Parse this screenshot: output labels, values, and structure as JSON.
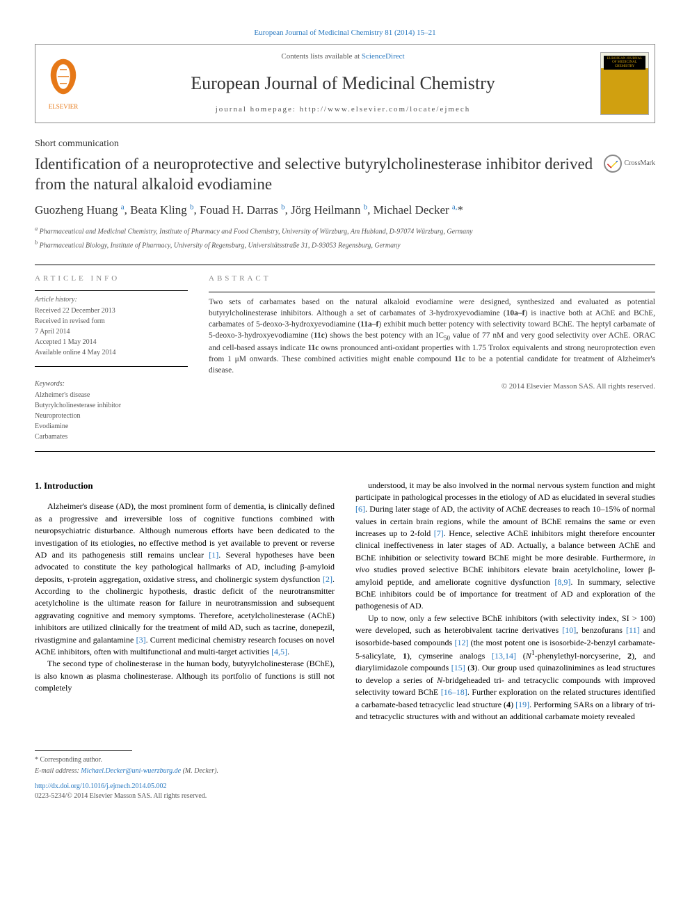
{
  "top_ref": "European Journal of Medicinal Chemistry 81 (2014) 15–21",
  "header": {
    "contents_prefix": "Contents lists available at ",
    "contents_link": "ScienceDirect",
    "journal_name": "European Journal of Medicinal Chemistry",
    "homepage_prefix": "journal homepage: ",
    "homepage_url": "http://www.elsevier.com/locate/ejmech",
    "elsevier_label": "ELSEVIER",
    "cover_label": "EUROPEAN JOURNAL OF MEDICINAL CHEMISTRY"
  },
  "article_type": "Short communication",
  "title": "Identification of a neuroprotective and selective butyrylcholinesterase inhibitor derived from the natural alkaloid evodiamine",
  "crossmark_label": "CrossMark",
  "authors_html": "Guozheng Huang <sup>a</sup>, Beata Kling <sup>b</sup>, Fouad H. Darras <sup>b</sup>, Jörg Heilmann <sup>b</sup>, Michael Decker <sup>a,</sup>*",
  "affiliations": [
    "a Pharmaceutical and Medicinal Chemistry, Institute of Pharmacy and Food Chemistry, University of Würzburg, Am Hubland, D-97074 Würzburg, Germany",
    "b Pharmaceutical Biology, Institute of Pharmacy, University of Regensburg, Universitätsstraße 31, D-93053 Regensburg, Germany"
  ],
  "info": {
    "heading": "ARTICLE INFO",
    "history_label": "Article history:",
    "history": [
      "Received 22 December 2013",
      "Received in revised form",
      "7 April 2014",
      "Accepted 1 May 2014",
      "Available online 4 May 2014"
    ],
    "keywords_label": "Keywords:",
    "keywords": [
      "Alzheimer's disease",
      "Butyrylcholinesterase inhibitor",
      "Neuroprotection",
      "Evodiamine",
      "Carbamates"
    ]
  },
  "abstract": {
    "heading": "ABSTRACT",
    "text": "Two sets of carbamates based on the natural alkaloid evodiamine were designed, synthesized and evaluated as potential butyrylcholinesterase inhibitors. Although a set of carbamates of 3-hydroxyevodiamine (10a–f) is inactive both at AChE and BChE, carbamates of 5-deoxo-3-hydroxyevodiamine (11a–f) exhibit much better potency with selectivity toward BChE. The heptyl carbamate of 5-deoxo-3-hydroxyevodiamine (11c) shows the best potency with an IC50 value of 77 nM and very good selectivity over AChE. ORAC and cell-based assays indicate 11c owns pronounced anti-oxidant properties with 1.75 Trolox equivalents and strong neuroprotection even from 1 μM onwards. These combined activities might enable compound 11c to be a potential candidate for treatment of Alzheimer's disease.",
    "copyright": "© 2014 Elsevier Masson SAS. All rights reserved."
  },
  "body": {
    "section_heading": "1. Introduction",
    "col1": [
      "Alzheimer's disease (AD), the most prominent form of dementia, is clinically defined as a progressive and irreversible loss of cognitive functions combined with neuropsychiatric disturbance. Although numerous efforts have been dedicated to the investigation of its etiologies, no effective method is yet available to prevent or reverse AD and its pathogenesis still remains unclear [1]. Several hypotheses have been advocated to constitute the key pathological hallmarks of AD, including β-amyloid deposits, τ-protein aggregation, oxidative stress, and cholinergic system dysfunction [2]. According to the cholinergic hypothesis, drastic deficit of the neurotransmitter acetylcholine is the ultimate reason for failure in neurotransmission and subsequent aggravating cognitive and memory symptoms. Therefore, acetylcholinesterase (AChE) inhibitors are utilized clinically for the treatment of mild AD, such as tacrine, donepezil, rivastigmine and galantamine [3]. Current medicinal chemistry research focuses on novel AChE inhibitors, often with multifunctional and multi-target activities [4,5].",
      "The second type of cholinesterase in the human body, butyrylcholinesterase (BChE), is also known as plasma cholinesterase. Although its portfolio of functions is still not completely"
    ],
    "col2": [
      "understood, it may be also involved in the normal nervous system function and might participate in pathological processes in the etiology of AD as elucidated in several studies [6]. During later stage of AD, the activity of AChE decreases to reach 10–15% of normal values in certain brain regions, while the amount of BChE remains the same or even increases up to 2-fold [7]. Hence, selective AChE inhibitors might therefore encounter clinical ineffectiveness in later stages of AD. Actually, a balance between AChE and BChE inhibition or selectivity toward BChE might be more desirable. Furthermore, in vivo studies proved selective BChE inhibitors elevate brain acetylcholine, lower β-amyloid peptide, and ameliorate cognitive dysfunction [8,9]. In summary, selective BChE inhibitors could be of importance for treatment of AD and exploration of the pathogenesis of AD.",
      "Up to now, only a few selective BChE inhibitors (with selectivity index, SI > 100) were developed, such as heterobivalent tacrine derivatives [10], benzofurans [11] and isosorbide-based compounds [12] (the most potent one is isosorbide-2-benzyl carbamate-5-salicylate, 1), cymserine analogs [13,14] (N1-phenylethyl-norcyserine, 2), and diarylimidazole compounds [15] (3). Our group used quinazolinimines as lead structures to develop a series of N-bridgeheaded tri- and tetracyclic compounds with improved selectivity toward BChE [16–18]. Further exploration on the related structures identified a carbamate-based tetracyclic lead structure (4) [19]. Performing SARs on a library of tri- and tetracyclic structures with and without an additional carbamate moiety revealed"
    ]
  },
  "footer": {
    "corr_label": "* Corresponding author.",
    "email_label": "E-mail address: ",
    "email": "Michael.Decker@uni-wuerzburg.de",
    "email_suffix": " (M. Decker).",
    "doi": "http://dx.doi.org/10.1016/j.ejmech.2014.05.002",
    "issn_copyright": "0223-5234/© 2014 Elsevier Masson SAS. All rights reserved."
  },
  "colors": {
    "link": "#2878c0",
    "elsevier_orange": "#e67817",
    "text": "#333333",
    "muted": "#555555"
  }
}
